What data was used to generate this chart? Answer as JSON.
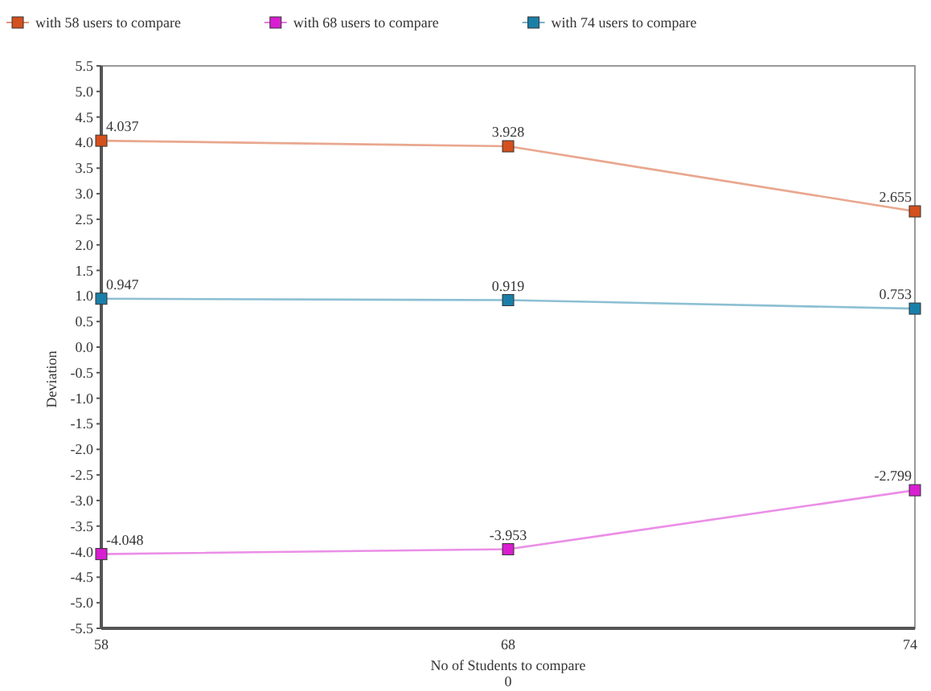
{
  "chart_data": {
    "type": "line",
    "xlabel": "No of Students to compare",
    "ylabel": "Deviation",
    "annotations": [
      "0"
    ],
    "categories": [
      "58",
      "68",
      "74"
    ],
    "series": [
      {
        "name": "with 58 users to compare",
        "color": "#d4501e",
        "values": [
          4.037,
          3.928,
          2.655
        ]
      },
      {
        "name": "with 68 users to compare",
        "color": "#d81ed0",
        "values": [
          -4.048,
          -3.953,
          -2.799
        ]
      },
      {
        "name": "with 74 users to compare",
        "color": "#1a7fa8",
        "values": [
          0.947,
          0.919,
          0.753
        ]
      }
    ],
    "ylim": [
      -5.5,
      5.5
    ],
    "yticks": [
      {
        "value": -5.5,
        "label": "-5.5"
      },
      {
        "value": -5,
        "label": "-5.0"
      },
      {
        "value": -4.5,
        "label": "-4.5"
      },
      {
        "value": -4,
        "label": "-4.0"
      },
      {
        "value": -3.5,
        "label": "-3.5"
      },
      {
        "value": -3,
        "label": "-3.0"
      },
      {
        "value": -2.5,
        "label": "-2.5"
      },
      {
        "value": -2,
        "label": "-2.0"
      },
      {
        "value": -1.5,
        "label": "-1.5"
      },
      {
        "value": -1,
        "label": "-1.0"
      },
      {
        "value": -0.5,
        "label": "-0.5"
      },
      {
        "value": 0,
        "label": "0.0"
      },
      {
        "value": 0.5,
        "label": "0.5"
      },
      {
        "value": 1,
        "label": "1.0"
      },
      {
        "value": 1.5,
        "label": "1.5"
      },
      {
        "value": 2,
        "label": "2.0"
      },
      {
        "value": 2.5,
        "label": "2.5"
      },
      {
        "value": 3,
        "label": "3.0"
      },
      {
        "value": 3.5,
        "label": "3.5"
      },
      {
        "value": 4,
        "label": "4.0"
      },
      {
        "value": 4.5,
        "label": "4.5"
      },
      {
        "value": 5,
        "label": "5.0"
      },
      {
        "value": 5.5,
        "label": "5.5"
      }
    ],
    "data_labels": true,
    "marker": "square",
    "legend": "top left",
    "grid": false
  }
}
